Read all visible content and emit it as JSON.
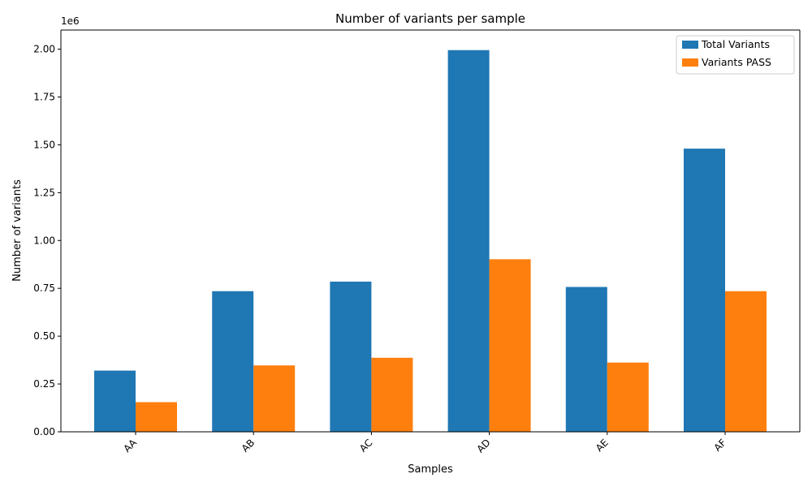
{
  "chart_data": {
    "type": "bar",
    "title": "Number of variants per sample",
    "xlabel": "Samples",
    "ylabel": "Number of variants",
    "y_offset_text": "1e6",
    "ylim": [
      0,
      2100000
    ],
    "yticks": [
      0,
      250000,
      500000,
      750000,
      1000000,
      1250000,
      1500000,
      1750000,
      2000000
    ],
    "ytick_labels": [
      "0.00",
      "0.25",
      "0.50",
      "0.75",
      "1.00",
      "1.25",
      "1.50",
      "1.75",
      "2.00"
    ],
    "categories": [
      "AA",
      "AB",
      "AC",
      "AD",
      "AE",
      "AF"
    ],
    "series": [
      {
        "name": "Total Variants",
        "color": "#1f77b4",
        "values": [
          320000,
          735000,
          785000,
          1995000,
          757000,
          1480000
        ]
      },
      {
        "name": "Variants PASS",
        "color": "#ff7f0e",
        "values": [
          155000,
          347000,
          387000,
          902000,
          362000,
          735000
        ]
      }
    ],
    "grid": false,
    "legend_position": "top-right"
  }
}
